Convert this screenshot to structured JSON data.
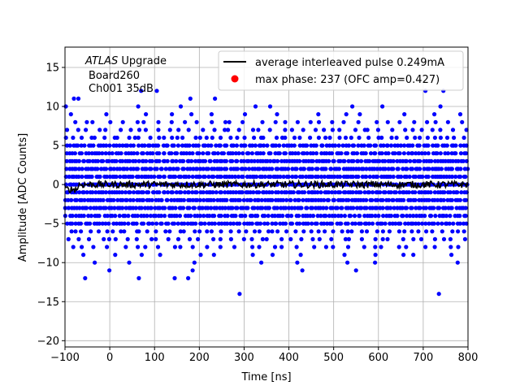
{
  "chart_data": {
    "type": "scatter",
    "xlabel": "Time [ns]",
    "ylabel": "Amplitude [ADC Counts]",
    "xlim": [
      -100,
      800
    ],
    "ylim": [
      -20.8,
      17.6
    ],
    "xticks": [
      -100,
      0,
      100,
      200,
      300,
      400,
      500,
      600,
      700,
      800
    ],
    "yticks": [
      -20,
      -15,
      -10,
      -5,
      0,
      5,
      10,
      15
    ],
    "grid": true,
    "annotation": {
      "line1_italic": "ATLAS",
      "line1_rest": " Upgrade",
      "line2": "Board260",
      "line3": "Ch001 35dB"
    },
    "legend": {
      "placement": "top-right",
      "entries": [
        {
          "label": "average interleaved pulse 0.249mA",
          "marker": "line",
          "color": "#000000"
        },
        {
          "label": "max phase: 237 (OFC amp=0.427)",
          "marker": "dot",
          "color": "#ff0000"
        }
      ]
    },
    "series": [
      {
        "name": "samples",
        "color": "#0000ff",
        "quantization_levels": [
          -10,
          -9,
          -8,
          -7,
          -6,
          -5,
          -4,
          -3,
          -2,
          -1,
          0,
          1,
          2,
          3,
          4,
          5,
          6,
          7,
          8,
          9,
          10
        ],
        "dense_range": [
          -8,
          8
        ],
        "outliers": [
          {
            "x": -80,
            "y": 11
          },
          {
            "x": -70,
            "y": 11
          },
          {
            "x": 70,
            "y": 12
          },
          {
            "x": 105,
            "y": 12
          },
          {
            "x": 180,
            "y": 11
          },
          {
            "x": 235,
            "y": 11
          },
          {
            "x": 705,
            "y": 12
          },
          {
            "x": 745,
            "y": 12
          },
          {
            "x": -55,
            "y": -12
          },
          {
            "x": 65,
            "y": -12
          },
          {
            "x": 145,
            "y": -12
          },
          {
            "x": 175,
            "y": -12
          },
          {
            "x": 185,
            "y": -11
          },
          {
            "x": -1,
            "y": -11
          },
          {
            "x": 290,
            "y": -14
          },
          {
            "x": 430,
            "y": -11
          },
          {
            "x": 550,
            "y": -11
          },
          {
            "x": 735,
            "y": -14
          }
        ]
      },
      {
        "name": "average interleaved pulse 0.249mA",
        "color": "#000000",
        "mean": 0.0,
        "x_range": [
          -100,
          800
        ]
      }
    ]
  }
}
